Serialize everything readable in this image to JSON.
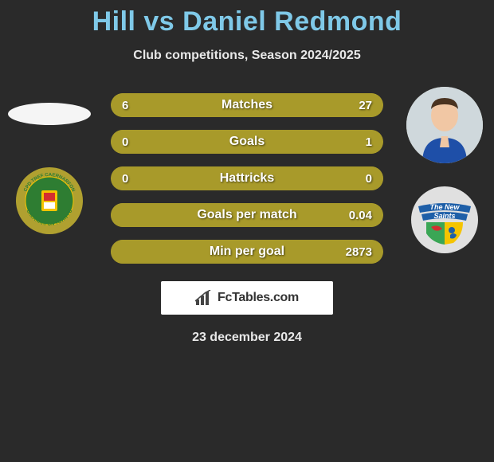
{
  "title": "Hill vs Daniel Redmond",
  "title_color": "#7fc9e8",
  "subtitle": "Club competitions, Season 2024/2025",
  "background_color": "#2a2a2a",
  "text_color": "#e8e8e8",
  "left_player": {
    "name": "Hill",
    "avatar_placeholder": true,
    "club_crest": {
      "outer_ring": "#b0a030",
      "inner": "#2e7d32",
      "text_top": "CPD TREF CAERNARFON",
      "text_bottom": "CAERNARFON TOWN FC"
    }
  },
  "right_player": {
    "name": "Daniel Redmond",
    "avatar_bg": "#d8d0c0",
    "club_crest": {
      "outer_ring": "#e0e0e0",
      "banner_color": "#1e5fa8",
      "banner_text": "The New Saints",
      "left_half": "#3aa655",
      "right_half": "#f5c400",
      "dragon_color": "#d32f2f"
    }
  },
  "stats": [
    {
      "label": "Matches",
      "left_val": "6",
      "right_val": "27",
      "left_pct": 18,
      "right_pct": 82,
      "left_color": "#a89a2a",
      "right_color": "#a89a2a"
    },
    {
      "label": "Goals",
      "left_val": "0",
      "right_val": "1",
      "left_pct": 0,
      "right_pct": 100,
      "left_color": "#a89a2a",
      "right_color": "#a89a2a"
    },
    {
      "label": "Hattricks",
      "left_val": "0",
      "right_val": "0",
      "left_pct": 100,
      "right_pct": 0,
      "left_color": "#a89a2a",
      "right_color": "#a89a2a"
    },
    {
      "label": "Goals per match",
      "left_val": "",
      "right_val": "0.04",
      "left_pct": 0,
      "right_pct": 100,
      "left_color": "#a89a2a",
      "right_color": "#a89a2a"
    },
    {
      "label": "Min per goal",
      "left_val": "",
      "right_val": "2873",
      "left_pct": 0,
      "right_pct": 100,
      "left_color": "#a89a2a",
      "right_color": "#a89a2a"
    }
  ],
  "brand": {
    "name": "FcTables.com",
    "icon": "bar-chart-icon"
  },
  "date": "23 december 2024"
}
